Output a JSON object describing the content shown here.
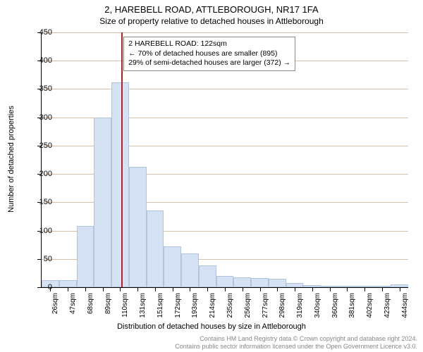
{
  "title_main": "2, HAREBELL ROAD, ATTLEBOROUGH, NR17 1FA",
  "title_sub": "Size of property relative to detached houses in Attleborough",
  "chart": {
    "type": "histogram",
    "y_axis_label": "Number of detached properties",
    "x_axis_label": "Distribution of detached houses by size in Attleborough",
    "ylim": [
      0,
      450
    ],
    "ytick_step": 50,
    "grid_color": "#d8bfa8",
    "bar_fill": "#d5e2f3",
    "bar_border": "#b0c4de",
    "background_color": "#ffffff",
    "marker_color": "#b22222",
    "marker_value_sqm": 122,
    "x_start": 26,
    "x_step": 21,
    "x_unit": "sqm",
    "x_labels": [
      "26sqm",
      "47sqm",
      "68sqm",
      "89sqm",
      "110sqm",
      "131sqm",
      "151sqm",
      "172sqm",
      "193sqm",
      "214sqm",
      "235sqm",
      "256sqm",
      "277sqm",
      "298sqm",
      "319sqm",
      "340sqm",
      "360sqm",
      "381sqm",
      "402sqm",
      "423sqm",
      "444sqm"
    ],
    "values": [
      12,
      13,
      108,
      300,
      362,
      212,
      135,
      72,
      60,
      38,
      20,
      18,
      16,
      15,
      8,
      4,
      3,
      2,
      1,
      1,
      5
    ]
  },
  "info_box": {
    "line1": "2 HAREBELL ROAD: 122sqm",
    "line2": "← 70% of detached houses are smaller (895)",
    "line3": "29% of semi-detached houses are larger (372) →"
  },
  "footer": {
    "line1": "Contains HM Land Registry data © Crown copyright and database right 2024.",
    "line2": "Contains public sector information licensed under the Open Government Licence v3.0."
  }
}
